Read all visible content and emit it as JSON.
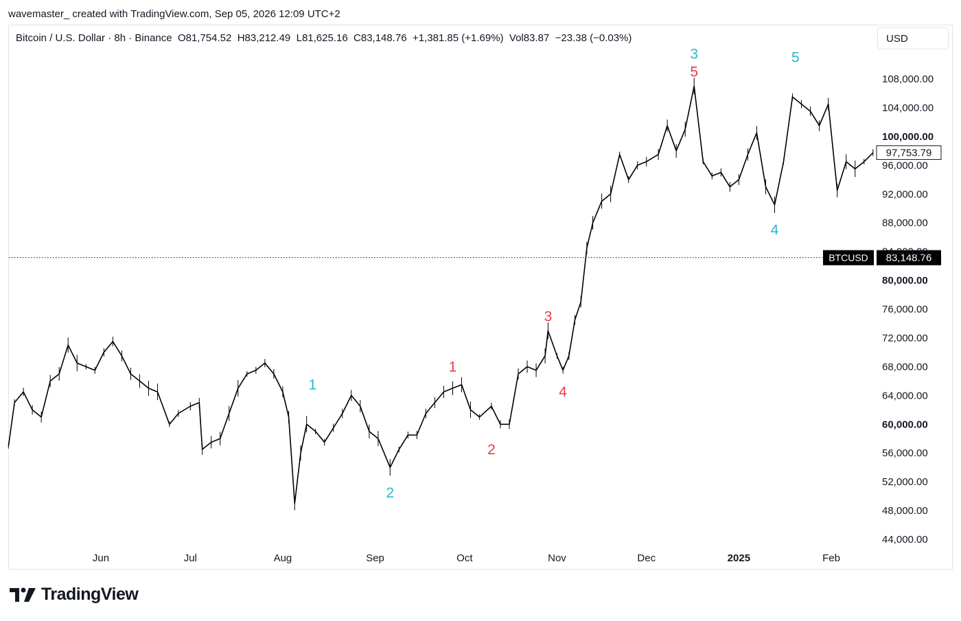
{
  "header": {
    "attribution": "wavemaster_ created with TradingView.com, Sep 05, 2026 12:09 UTC+2"
  },
  "legend": {
    "symbol": "Bitcoin / U.S. Dollar · 8h · Binance",
    "open": "O81,754.52",
    "high": "H83,212.49",
    "low": "L81,625.16",
    "close": "C83,148.76",
    "change": "+1,381.85 (+1.69%)",
    "volume": "Vol83.87",
    "volume_change": "−23.38 (−0.03%)"
  },
  "currency_label": "USD",
  "brand": "TradingView",
  "colors": {
    "cyan_wave": "#22b8cf",
    "red_wave": "#f23645",
    "price": "#000000",
    "axis_text": "#131722"
  },
  "chart_data": {
    "type": "line",
    "price_scale": {
      "ticks": [
        "44,000.00",
        "48,000.00",
        "52,000.00",
        "56,000.00",
        "60,000.00",
        "64,000.00",
        "68,000.00",
        "72,000.00",
        "76,000.00",
        "80,000.00",
        "84,000.00",
        "88,000.00",
        "92,000.00",
        "96,000.00",
        "100,000.00",
        "104,000.00",
        "108,000.00"
      ],
      "tick_values": [
        44000,
        48000,
        52000,
        56000,
        60000,
        64000,
        68000,
        72000,
        76000,
        80000,
        84000,
        88000,
        92000,
        96000,
        100000,
        104000,
        108000
      ],
      "bold_ticks": [
        "60,000.00",
        "80,000.00",
        "100,000.00"
      ],
      "ylim": [
        41000,
        112500
      ]
    },
    "time_scale": {
      "labels": [
        "Jun",
        "Jul",
        "Aug",
        "Sep",
        "Oct",
        "Nov",
        "Dec",
        "2025",
        "Feb"
      ],
      "label_dates": [
        "2024-06-01",
        "2024-07-01",
        "2024-08-01",
        "2024-09-01",
        "2024-10-01",
        "2024-11-01",
        "2024-12-01",
        "2025-01-01",
        "2025-02-01"
      ],
      "bold_labels": [
        "2025"
      ],
      "xlim": [
        "2024-05-01",
        "2025-02-15"
      ]
    },
    "series": [
      {
        "x": [
          "2024-05-01",
          "2024-05-03",
          "2024-05-06",
          "2024-05-09",
          "2024-05-12",
          "2024-05-15",
          "2024-05-18",
          "2024-05-21",
          "2024-05-24",
          "2024-05-27",
          "2024-05-30",
          "2024-06-02",
          "2024-06-05",
          "2024-06-08",
          "2024-06-11",
          "2024-06-14",
          "2024-06-17",
          "2024-06-20",
          "2024-06-24",
          "2024-06-27",
          "2024-07-01",
          "2024-07-04",
          "2024-07-05",
          "2024-07-08",
          "2024-07-11",
          "2024-07-14",
          "2024-07-17",
          "2024-07-20",
          "2024-07-23",
          "2024-07-26",
          "2024-07-29",
          "2024-08-01",
          "2024-08-03",
          "2024-08-05",
          "2024-08-07",
          "2024-08-09",
          "2024-08-12",
          "2024-08-15",
          "2024-08-18",
          "2024-08-21",
          "2024-08-24",
          "2024-08-27",
          "2024-08-30",
          "2024-09-02",
          "2024-09-06",
          "2024-09-09",
          "2024-09-12",
          "2024-09-15",
          "2024-09-18",
          "2024-09-21",
          "2024-09-24",
          "2024-09-27",
          "2024-09-30",
          "2024-10-03",
          "2024-10-06",
          "2024-10-10",
          "2024-10-13",
          "2024-10-16",
          "2024-10-19",
          "2024-10-22",
          "2024-10-25",
          "2024-10-28",
          "2024-10-29",
          "2024-11-01",
          "2024-11-03",
          "2024-11-05",
          "2024-11-07",
          "2024-11-09",
          "2024-11-11",
          "2024-11-13",
          "2024-11-16",
          "2024-11-19",
          "2024-11-22",
          "2024-11-25",
          "2024-11-28",
          "2024-12-01",
          "2024-12-05",
          "2024-12-08",
          "2024-12-11",
          "2024-12-14",
          "2024-12-17",
          "2024-12-20",
          "2024-12-23",
          "2024-12-26",
          "2024-12-29",
          "2025-01-01",
          "2025-01-04",
          "2025-01-07",
          "2025-01-10",
          "2025-01-13",
          "2025-01-16",
          "2025-01-19",
          "2025-01-22",
          "2025-01-25",
          "2025-01-28",
          "2025-01-31",
          "2025-02-03",
          "2025-02-06",
          "2025-02-09",
          "2025-02-12",
          "2025-02-15"
        ],
        "y": [
          57000,
          63000,
          64500,
          62000,
          61000,
          66000,
          67000,
          71000,
          68500,
          68000,
          67500,
          70000,
          71500,
          69500,
          67000,
          66000,
          65000,
          64500,
          60000,
          61500,
          62500,
          63000,
          56500,
          57500,
          58000,
          61500,
          65000,
          67000,
          67500,
          68500,
          67000,
          64500,
          61000,
          49000,
          56000,
          60000,
          59000,
          57500,
          59500,
          61500,
          64000,
          62500,
          59000,
          58000,
          54000,
          56500,
          58500,
          58500,
          61500,
          63000,
          64500,
          65000,
          65500,
          62000,
          61000,
          62500,
          60000,
          60000,
          67000,
          68000,
          67500,
          69500,
          73000,
          69500,
          67500,
          69500,
          74500,
          77000,
          84500,
          88000,
          91000,
          92000,
          97500,
          94000,
          96000,
          96500,
          97500,
          101500,
          98000,
          101000,
          107000,
          96500,
          94500,
          95000,
          93000,
          94000,
          97500,
          100500,
          93000,
          90500,
          96500,
          105500,
          104500,
          103500,
          101500,
          104500,
          92500,
          96500,
          95500,
          96500,
          97753
        ]
      }
    ],
    "annotations": [
      {
        "label": "1",
        "color": "cyan",
        "date": "2024-08-11",
        "price": 65500
      },
      {
        "label": "2",
        "color": "cyan",
        "date": "2024-09-06",
        "price": 50500
      },
      {
        "label": "3",
        "color": "cyan",
        "date": "2024-12-17",
        "price": 111500
      },
      {
        "label": "4",
        "color": "cyan",
        "date": "2025-01-13",
        "price": 87000
      },
      {
        "label": "5",
        "color": "cyan",
        "date": "2025-01-20",
        "price": 111000
      },
      {
        "label": "1",
        "color": "red",
        "date": "2024-09-27",
        "price": 68000
      },
      {
        "label": "2",
        "color": "red",
        "date": "2024-10-10",
        "price": 56500
      },
      {
        "label": "3",
        "color": "red",
        "date": "2024-10-29",
        "price": 75000
      },
      {
        "label": "4",
        "color": "red",
        "date": "2024-11-03",
        "price": 64500
      },
      {
        "label": "5",
        "color": "red",
        "date": "2024-12-17",
        "price": 109000
      }
    ],
    "price_lines": [
      {
        "name": "BTCUSD",
        "label": "BTCUSD",
        "value": 83148.76,
        "value_label": "83,148.76",
        "style": "dotted"
      },
      {
        "name": "last",
        "value": 97753.79,
        "value_label": "97,753.79"
      }
    ]
  }
}
